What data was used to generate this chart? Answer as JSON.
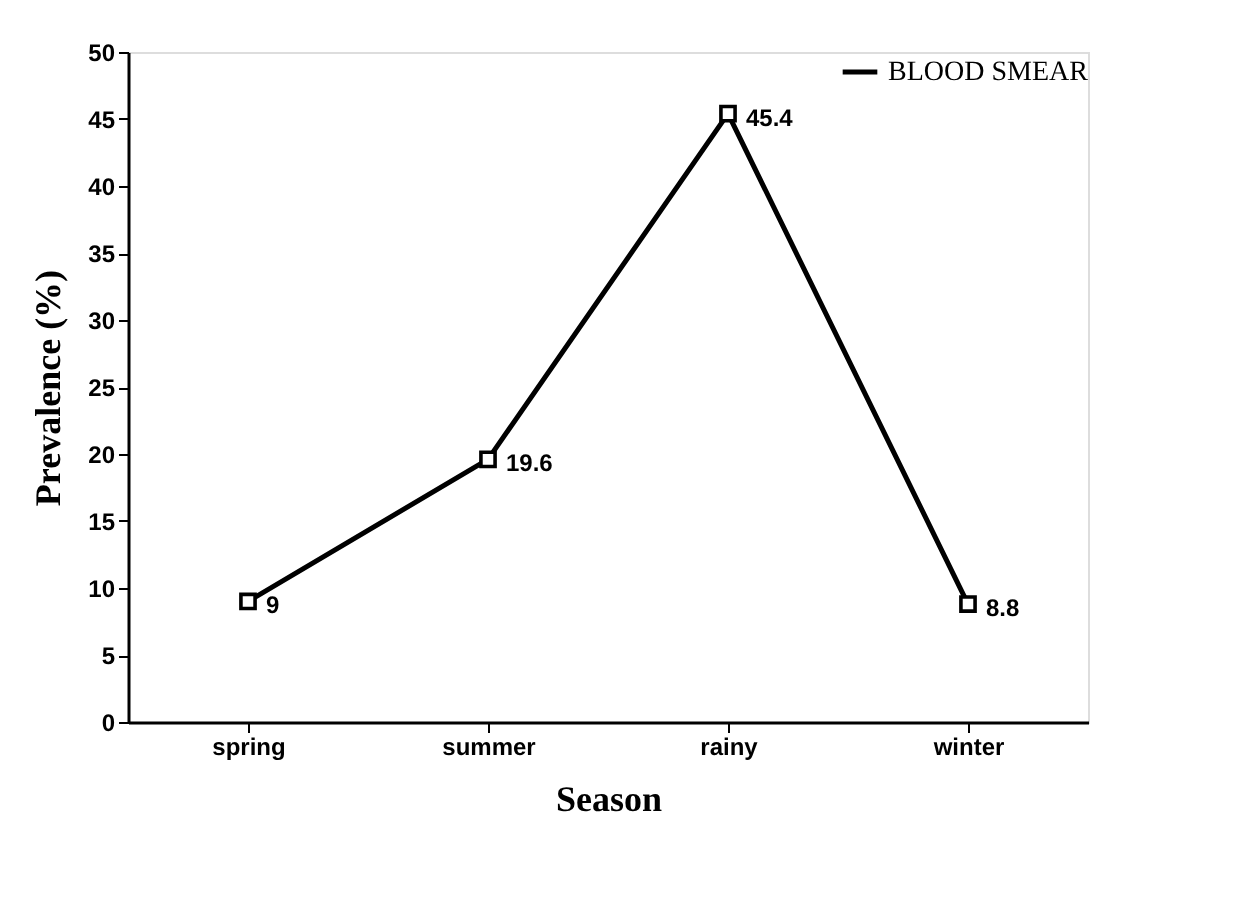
{
  "chart_data": {
    "type": "line",
    "xlabel": "Season",
    "ylabel": "Prevalence (%)",
    "categories": [
      "spring",
      "summer",
      "rainy",
      "winter"
    ],
    "series": [
      {
        "name": "BLOOD SMEAR",
        "color": "#000000",
        "values": [
          9,
          19.6,
          45.4,
          8.8
        ]
      }
    ],
    "ylim": [
      0,
      50
    ],
    "yticks": [
      0,
      5,
      10,
      15,
      20,
      25,
      30,
      35,
      40,
      45,
      50
    ],
    "grid": false,
    "legend": "top right",
    "marker": "square",
    "line_style": "solid",
    "data_labels": true
  }
}
